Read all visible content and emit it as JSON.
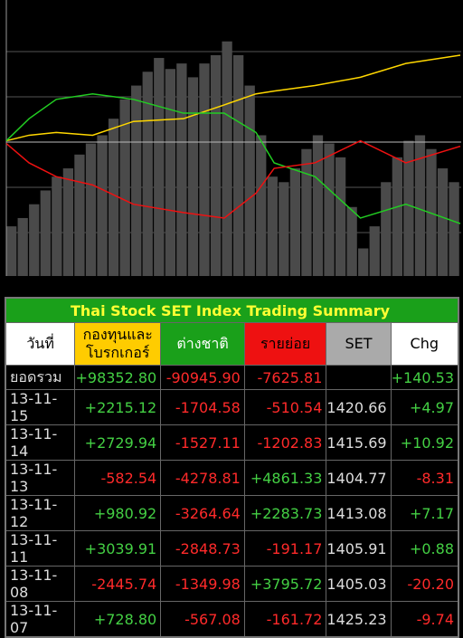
{
  "chart_data": [
    {
      "type": "bar",
      "color": "#4a4a4a",
      "ylim": [
        0,
        100
      ],
      "values": [
        18,
        21,
        26,
        31,
        36,
        39,
        44,
        48,
        51,
        57,
        64,
        69,
        74,
        79,
        75,
        77,
        72,
        77,
        80,
        85,
        80,
        69,
        51,
        36,
        34,
        39,
        46,
        51,
        48,
        43,
        25,
        10,
        18,
        34,
        43,
        49,
        51,
        46,
        39,
        34
      ]
    },
    {
      "type": "line",
      "ylim": [
        0,
        100
      ],
      "xlim": [
        0,
        100
      ],
      "x": [
        0,
        5,
        11,
        19,
        28,
        39,
        48,
        55,
        59,
        68,
        78,
        88,
        100
      ],
      "series": [
        {
          "color": "#ffd700",
          "values": [
            49,
            51,
            52,
            51,
            56,
            57,
            62,
            66,
            67,
            69,
            72,
            77,
            80
          ]
        },
        {
          "color": "#22cc22",
          "values": [
            49,
            57,
            64,
            66,
            64,
            59,
            59,
            52,
            41,
            36,
            21,
            26,
            19
          ]
        },
        {
          "color": "#ee1111",
          "values": [
            48,
            41,
            36,
            33,
            26,
            23,
            21,
            30,
            39,
            41,
            49,
            41,
            47
          ]
        }
      ]
    }
  ],
  "table": {
    "title": "Thai Stock SET Index Trading Summary",
    "header": [
      "วันที่",
      "กองทุนและ\nโบรกเกอร์",
      "ต่างชาติ",
      "รายย่อย",
      "SET",
      "Chg"
    ],
    "rows": [
      [
        "ยอดรวม",
        "+98352.80",
        "-90945.90",
        "-7625.81",
        null,
        "+140.53"
      ],
      [
        "13-11-15",
        "+2215.12",
        "-1704.58",
        "-510.54",
        "1420.66",
        "+4.97"
      ],
      [
        "13-11-14",
        "+2729.94",
        "-1527.11",
        "-1202.83",
        "1415.69",
        "+10.92"
      ],
      [
        "13-11-13",
        "-582.54",
        "-4278.81",
        "+4861.33",
        "1404.77",
        "-8.31"
      ],
      [
        "13-11-12",
        "+980.92",
        "-3264.64",
        "+2283.73",
        "1413.08",
        "+7.17"
      ],
      [
        "13-11-11",
        "+3039.91",
        "-2848.73",
        "-191.17",
        "1405.91",
        "+0.88"
      ],
      [
        "13-11-08",
        "-2445.74",
        "-1349.98",
        "+3795.72",
        "1405.03",
        "-20.20"
      ],
      [
        "13-11-07",
        "+728.80",
        "-567.08",
        "-161.72",
        "1425.23",
        "-9.74"
      ]
    ]
  }
}
